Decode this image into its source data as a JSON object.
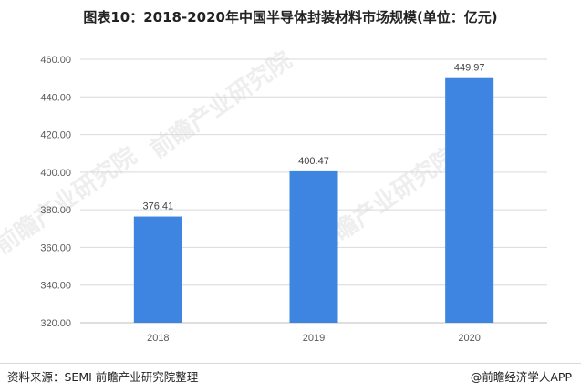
{
  "title": "图表10：2018-2020年中国半导体封装材料市场规模(单位：亿元)",
  "source": "资料来源：SEMI 前瞻产业研究院整理",
  "brand": "@前瞻经济学人APP",
  "watermark": "前瞻产业研究院",
  "colors": {
    "bar": "#3d85e0",
    "grid": "#d9d9d9",
    "axis": "#bfbfbf"
  },
  "chart_data": {
    "type": "bar",
    "categories": [
      "2018",
      "2019",
      "2020"
    ],
    "values": [
      376.41,
      400.47,
      449.97
    ],
    "data_labels": [
      "376.41",
      "400.47",
      "449.97"
    ],
    "title": "图表10：2018-2020年中国半导体封装材料市场规模(单位：亿元)",
    "xlabel": "",
    "ylabel": "",
    "ylim": [
      320,
      460
    ],
    "yticks": [
      "320.00",
      "340.00",
      "360.00",
      "380.00",
      "400.00",
      "420.00",
      "440.00",
      "460.00"
    ],
    "grid": true,
    "legend": "none"
  }
}
